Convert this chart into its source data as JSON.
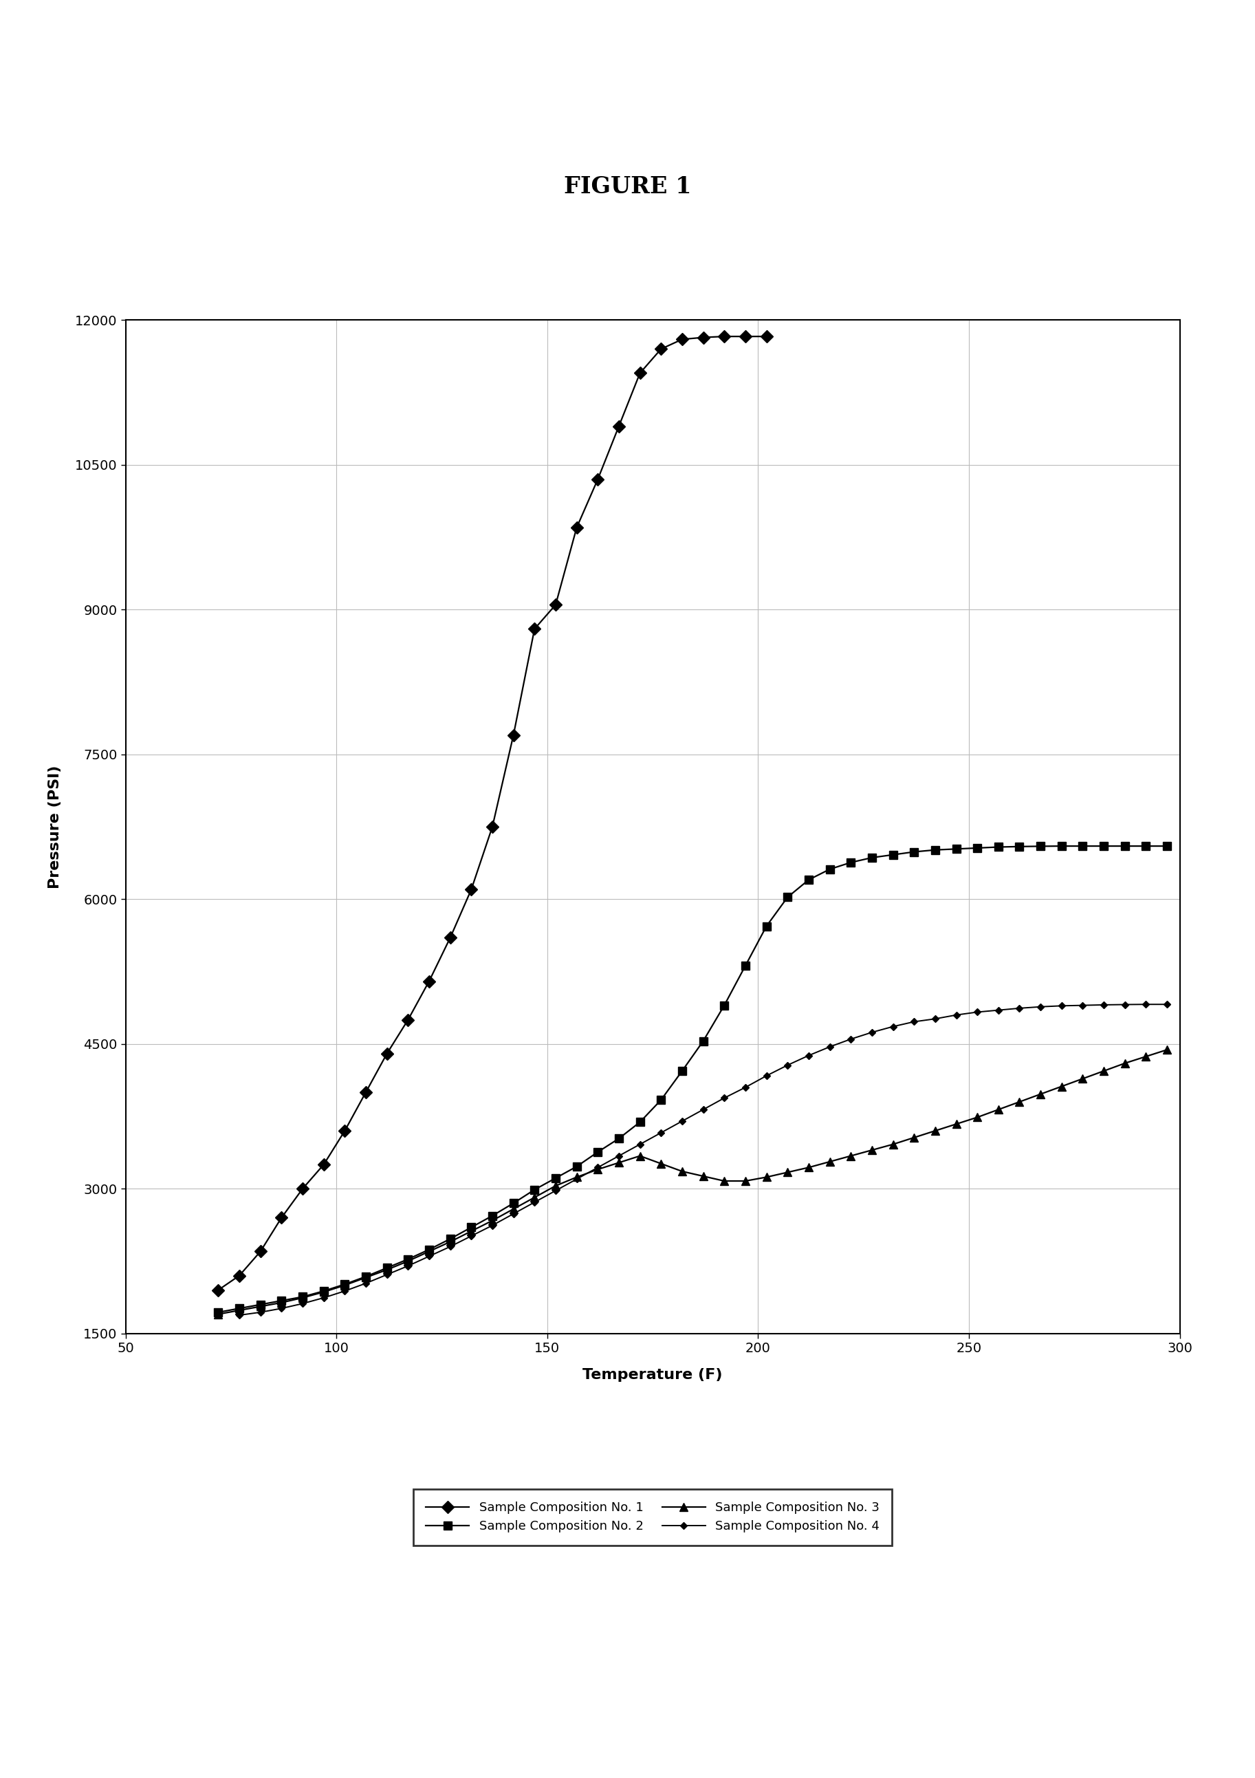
{
  "title": "FIGURE 1",
  "xlabel": "Temperature (F)",
  "ylabel": "Pressure (PSI)",
  "xlim": [
    50,
    300
  ],
  "ylim": [
    1500,
    12000
  ],
  "xticks": [
    50,
    100,
    150,
    200,
    250,
    300
  ],
  "yticks": [
    1500,
    3000,
    4500,
    6000,
    7500,
    9000,
    10500,
    12000
  ],
  "s1_x": [
    72,
    77,
    82,
    87,
    92,
    97,
    102,
    107,
    112,
    117,
    122,
    127,
    132,
    137,
    142,
    147,
    152,
    157,
    162,
    167,
    172,
    177,
    182,
    187,
    192,
    197,
    202
  ],
  "s1_y": [
    1950,
    2100,
    2350,
    2700,
    3000,
    3250,
    3600,
    4000,
    4400,
    4750,
    5150,
    5600,
    6100,
    6750,
    7700,
    8800,
    9050,
    9850,
    10350,
    10900,
    11450,
    11700,
    11800,
    11820,
    11830,
    11830,
    11830
  ],
  "s2_x": [
    72,
    77,
    82,
    87,
    92,
    97,
    102,
    107,
    112,
    117,
    122,
    127,
    132,
    137,
    142,
    147,
    152,
    157,
    162,
    167,
    172,
    177,
    182,
    187,
    192,
    197,
    202,
    207,
    212,
    217,
    222,
    227,
    232,
    237,
    242,
    247,
    252,
    257,
    262,
    267,
    272,
    277,
    282,
    287,
    292,
    297
  ],
  "s2_y": [
    1720,
    1760,
    1800,
    1840,
    1880,
    1940,
    2010,
    2090,
    2180,
    2270,
    2370,
    2480,
    2600,
    2720,
    2850,
    2990,
    3110,
    3230,
    3380,
    3520,
    3690,
    3920,
    4220,
    4530,
    4900,
    5310,
    5720,
    6020,
    6200,
    6310,
    6380,
    6430,
    6460,
    6490,
    6510,
    6520,
    6530,
    6540,
    6545,
    6548,
    6550,
    6550,
    6550,
    6550,
    6550,
    6550
  ],
  "s3_x": [
    72,
    77,
    82,
    87,
    92,
    97,
    102,
    107,
    112,
    117,
    122,
    127,
    132,
    137,
    142,
    147,
    152,
    157,
    162,
    167,
    172,
    177,
    182,
    187,
    192,
    197,
    202,
    207,
    212,
    217,
    222,
    227,
    232,
    237,
    242,
    247,
    252,
    257,
    262,
    267,
    272,
    277,
    282,
    287,
    292,
    297
  ],
  "s3_y": [
    1700,
    1740,
    1780,
    1820,
    1870,
    1930,
    2000,
    2080,
    2160,
    2250,
    2350,
    2450,
    2560,
    2670,
    2790,
    2910,
    3030,
    3120,
    3200,
    3270,
    3340,
    3260,
    3180,
    3130,
    3080,
    3080,
    3120,
    3170,
    3220,
    3280,
    3340,
    3400,
    3460,
    3530,
    3600,
    3670,
    3740,
    3820,
    3900,
    3980,
    4060,
    4140,
    4220,
    4300,
    4370,
    4440
  ],
  "s4_x": [
    77,
    82,
    87,
    92,
    97,
    102,
    107,
    112,
    117,
    122,
    127,
    132,
    137,
    142,
    147,
    152,
    157,
    162,
    167,
    172,
    177,
    182,
    187,
    192,
    197,
    202,
    207,
    212,
    217,
    222,
    227,
    232,
    237,
    242,
    247,
    252,
    257,
    262,
    267,
    272,
    277,
    282,
    287,
    292,
    297
  ],
  "s4_y": [
    1690,
    1720,
    1760,
    1810,
    1870,
    1940,
    2020,
    2110,
    2200,
    2300,
    2400,
    2510,
    2620,
    2740,
    2860,
    2980,
    3100,
    3220,
    3340,
    3460,
    3580,
    3700,
    3820,
    3940,
    4050,
    4170,
    4280,
    4380,
    4470,
    4550,
    4620,
    4680,
    4730,
    4760,
    4800,
    4830,
    4850,
    4870,
    4885,
    4895,
    4900,
    4905,
    4908,
    4910,
    4910
  ],
  "background_color": "#ffffff",
  "figure_title_fontsize": 22,
  "axis_label_fontsize": 16,
  "tick_label_fontsize": 14,
  "legend_fontsize": 13
}
